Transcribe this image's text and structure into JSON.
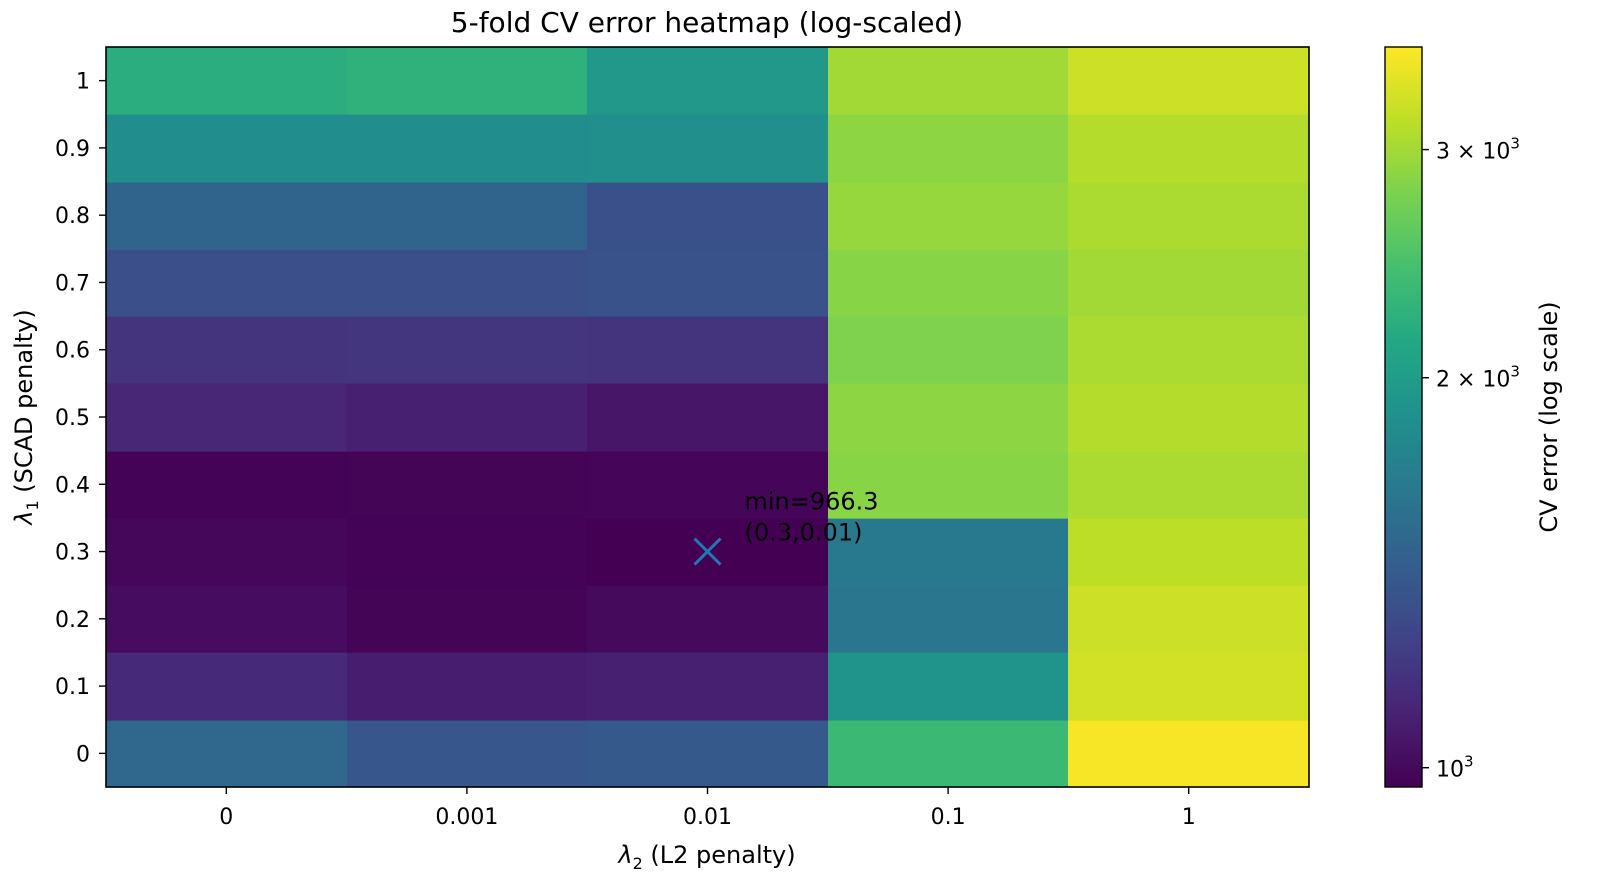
{
  "chart_data": {
    "type": "heatmap",
    "title": "5-fold CV error heatmap (log-scaled)",
    "xlabel_symbol": "λ",
    "xlabel_sub": "2",
    "xlabel_rest": " (L2 penalty)",
    "ylabel_symbol": "λ",
    "ylabel_sub": "1",
    "ylabel_rest": " (SCAD penalty)",
    "x_categories": [
      "0",
      "0.001",
      "0.01",
      "0.1",
      "1"
    ],
    "y_categories": [
      "0",
      "0.1",
      "0.2",
      "0.3",
      "0.4",
      "0.5",
      "0.6",
      "0.7",
      "0.8",
      "0.9",
      "1"
    ],
    "values": [
      [
        1500,
        1380,
        1400,
        2350,
        3550
      ],
      [
        1130,
        1080,
        1090,
        1900,
        3300
      ],
      [
        1010,
        980,
        1000,
        1620,
        3250
      ],
      [
        990,
        975,
        966.3,
        1640,
        3150
      ],
      [
        975,
        980,
        985,
        2850,
        3050
      ],
      [
        1120,
        1090,
        1050,
        2880,
        3100
      ],
      [
        1180,
        1190,
        1180,
        2800,
        3050
      ],
      [
        1330,
        1330,
        1350,
        2850,
        3000
      ],
      [
        1480,
        1480,
        1340,
        2930,
        3050
      ],
      [
        1830,
        1830,
        1850,
        2880,
        3100
      ],
      [
        2200,
        2250,
        1950,
        3000,
        3250
      ]
    ],
    "color_scale": "viridis",
    "color_log": true,
    "vmin": 966.3,
    "vmax": 3600,
    "colorbar_label": "CV error (log scale)",
    "colorbar_ticks": [
      {
        "value": 1000,
        "base": "10",
        "exp": "3"
      },
      {
        "value": 2000,
        "base": "2 × 10",
        "exp": "3"
      },
      {
        "value": 3000,
        "base": "3 × 10",
        "exp": "3"
      }
    ],
    "annotation": {
      "x": "0.01",
      "y": "0.3",
      "line1": "min=966.3",
      "line2": "(0.3,0.01)",
      "marker_color": "#1f77b4"
    }
  }
}
